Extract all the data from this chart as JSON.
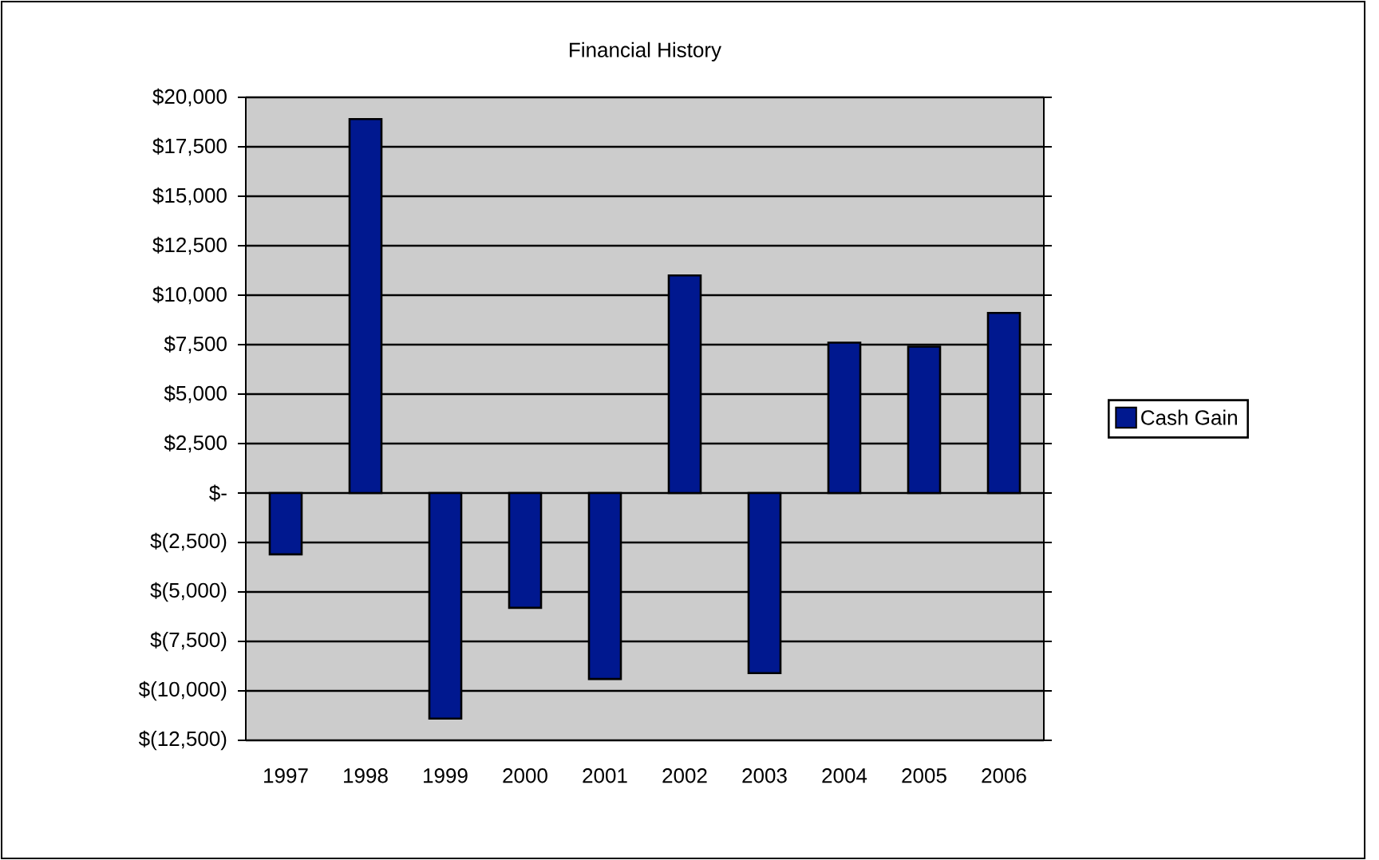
{
  "chart_data": {
    "type": "bar",
    "title": "Financial History",
    "categories": [
      "1997",
      "1998",
      "1999",
      "2000",
      "2001",
      "2002",
      "2003",
      "2004",
      "2005",
      "2006"
    ],
    "series": [
      {
        "name": "Cash Gain",
        "color": "#00188f",
        "values": [
          -3100,
          18900,
          -11400,
          -5800,
          -9400,
          11000,
          -9100,
          7600,
          7400,
          9100
        ]
      }
    ],
    "ylim": [
      -12500,
      20000
    ],
    "yticks": [
      {
        "value": -12500,
        "label": "$(12,500)"
      },
      {
        "value": -10000,
        "label": "$(10,000)"
      },
      {
        "value": -7500,
        "label": "$(7,500)"
      },
      {
        "value": -5000,
        "label": "$(5,000)"
      },
      {
        "value": -2500,
        "label": "$(2,500)"
      },
      {
        "value": 0,
        "label": "$-"
      },
      {
        "value": 2500,
        "label": "$2,500"
      },
      {
        "value": 5000,
        "label": "$5,000"
      },
      {
        "value": 7500,
        "label": "$7,500"
      },
      {
        "value": 10000,
        "label": "$10,000"
      },
      {
        "value": 12500,
        "label": "$12,500"
      },
      {
        "value": 15000,
        "label": "$15,000"
      },
      {
        "value": 17500,
        "label": "$17,500"
      },
      {
        "value": 20000,
        "label": "$20,000"
      }
    ],
    "grid": "y",
    "legend": "right"
  }
}
